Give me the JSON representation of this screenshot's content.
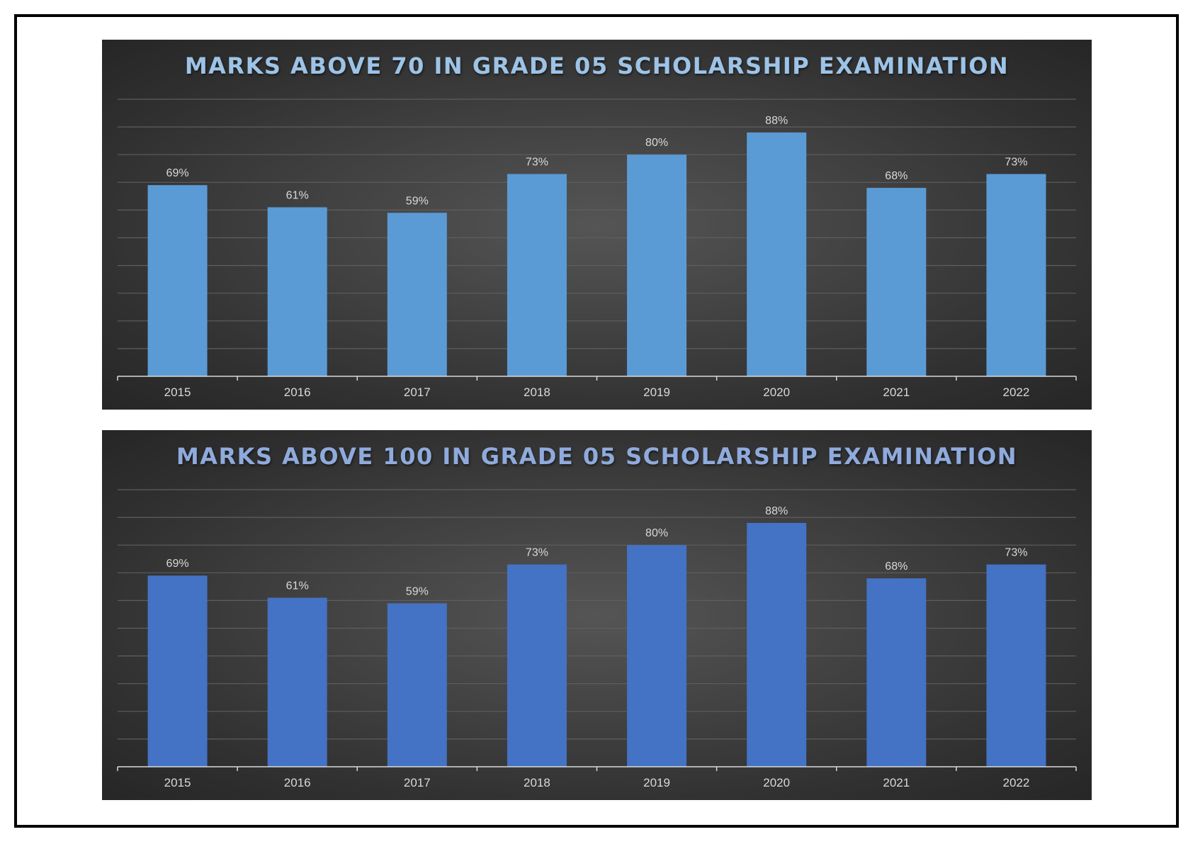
{
  "charts": [
    {
      "title": "MARKS ABOVE 70 IN GRADE 05 SCHOLARSHIP EXAMINATION",
      "title_color": "#9dc3e6",
      "bar_color": "#5b9bd5"
    },
    {
      "title": "MARKS ABOVE 100 IN GRADE 05 SCHOLARSHIP EXAMINATION",
      "title_color": "#8faadc",
      "bar_color": "#4472c4"
    }
  ],
  "chart_data": [
    {
      "type": "bar",
      "title": "MARKS ABOVE 70 IN GRADE 05 SCHOLARSHIP EXAMINATION",
      "categories": [
        "2015",
        "2016",
        "2017",
        "2018",
        "2019",
        "2020",
        "2021",
        "2022"
      ],
      "values": [
        69,
        61,
        59,
        73,
        80,
        88,
        68,
        73
      ],
      "data_labels": [
        "69%",
        "61%",
        "59%",
        "73%",
        "80%",
        "88%",
        "68%",
        "73%"
      ],
      "xlabel": "",
      "ylabel": "",
      "ylim": [
        0,
        100
      ],
      "gridlines": true,
      "legend": "none"
    },
    {
      "type": "bar",
      "title": "MARKS ABOVE 100 IN GRADE 05 SCHOLARSHIP EXAMINATION",
      "categories": [
        "2015",
        "2016",
        "2017",
        "2018",
        "2019",
        "2020",
        "2021",
        "2022"
      ],
      "values": [
        69,
        61,
        59,
        73,
        80,
        88,
        68,
        73
      ],
      "data_labels": [
        "69%",
        "61%",
        "59%",
        "73%",
        "80%",
        "88%",
        "68%",
        "73%"
      ],
      "xlabel": "",
      "ylabel": "",
      "ylim": [
        0,
        100
      ],
      "gridlines": true,
      "legend": "none"
    }
  ]
}
